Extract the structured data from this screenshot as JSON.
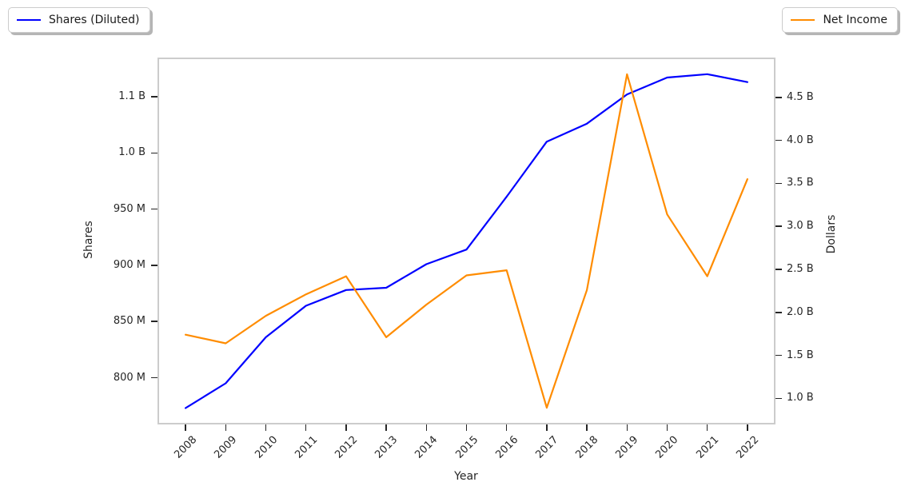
{
  "figure": {
    "background": "#ffffff"
  },
  "legends": [
    {
      "label": "Shares (Diluted)",
      "color": "#0000ff"
    },
    {
      "label": "Net Income",
      "color": "#ff8c00"
    }
  ],
  "chart_data": {
    "type": "line",
    "title": "",
    "xlabel": "Year",
    "grid": false,
    "legend_positions": [
      "figure upper-left",
      "figure upper-right"
    ],
    "x": [
      2008,
      2009,
      2010,
      2011,
      2012,
      2013,
      2014,
      2015,
      2016,
      2017,
      2018,
      2019,
      2020,
      2021,
      2022
    ],
    "x_tick_labels": [
      "2008",
      "2009",
      "2010",
      "2011",
      "2012",
      "2013",
      "2014",
      "2015",
      "2016",
      "2017",
      "2018",
      "2019",
      "2020",
      "2021",
      "2022"
    ],
    "xlim": [
      2007.3,
      2022.7
    ],
    "axes": {
      "left": {
        "label": "Shares",
        "unit": "millions of shares",
        "lim": [
          758.4,
          1084.8
        ],
        "ticks": [
          {
            "value": 800,
            "label": "800 M"
          },
          {
            "value": 850,
            "label": "850 M"
          },
          {
            "value": 900,
            "label": "900 M"
          },
          {
            "value": 950,
            "label": "950 M"
          },
          {
            "value": 1000,
            "label": "1.0 B"
          },
          {
            "value": 1050,
            "label": "1.1 B"
          }
        ]
      },
      "right": {
        "label": "Dollars",
        "unit": "billions of USD",
        "lim": [
          0.696,
          4.964
        ],
        "ticks": [
          {
            "value": 1.0,
            "label": "1.0 B"
          },
          {
            "value": 1.5,
            "label": "1.5 B"
          },
          {
            "value": 2.0,
            "label": "2.0 B"
          },
          {
            "value": 2.5,
            "label": "2.5 B"
          },
          {
            "value": 3.0,
            "label": "3.0 B"
          },
          {
            "value": 3.5,
            "label": "3.5 B"
          },
          {
            "value": 4.0,
            "label": "4.0 B"
          },
          {
            "value": 4.5,
            "label": "4.5 B"
          }
        ]
      }
    },
    "series": [
      {
        "name": "Shares (Diluted)",
        "axis": "left",
        "color": "#0000ff",
        "unit": "millions of shares",
        "values": [
          773,
          795,
          836,
          864,
          878,
          880,
          901,
          914,
          961,
          1010,
          1026,
          1052,
          1067,
          1070,
          1063
        ]
      },
      {
        "name": "Net Income",
        "axis": "right",
        "color": "#ff8c00",
        "unit": "billions of USD",
        "values": [
          1.74,
          1.64,
          1.96,
          2.21,
          2.42,
          1.71,
          2.09,
          2.43,
          2.49,
          0.89,
          2.26,
          4.77,
          3.14,
          2.42,
          3.55
        ]
      }
    ]
  }
}
